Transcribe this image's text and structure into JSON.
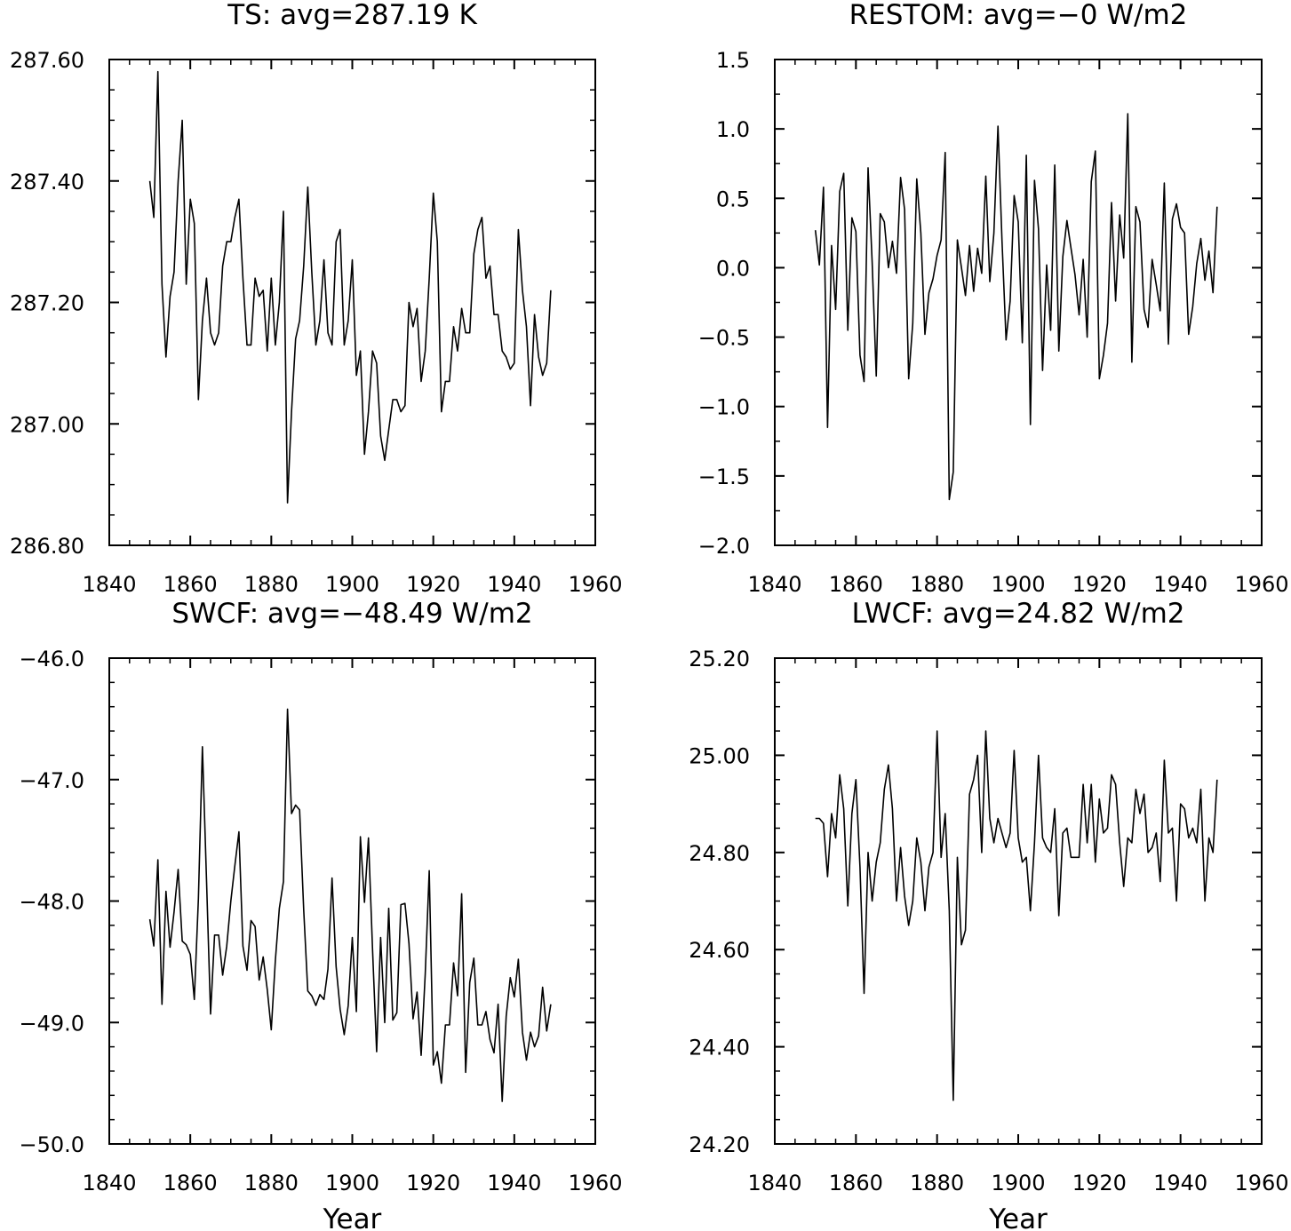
{
  "chart_data": [
    {
      "type": "line",
      "title": "TS: avg=287.19 K",
      "xlabel": "",
      "ylabel": "",
      "xlim": [
        1840,
        1960
      ],
      "ylim": [
        286.8,
        287.6
      ],
      "xticks": [
        1840,
        1860,
        1880,
        1900,
        1920,
        1940,
        1960
      ],
      "xtick_labels": [
        "1840",
        "1860",
        "1880",
        "1900",
        "1920",
        "1940",
        "1960"
      ],
      "yticks": [
        286.8,
        287.0,
        287.2,
        287.4,
        287.6
      ],
      "ytick_labels": [
        "286.80",
        "287.00",
        "287.20",
        "287.40",
        "287.60"
      ],
      "y_minor_step": 0.05,
      "grid": false,
      "x": [
        1850,
        1851,
        1852,
        1853,
        1854,
        1855,
        1856,
        1857,
        1858,
        1859,
        1860,
        1861,
        1862,
        1863,
        1864,
        1865,
        1866,
        1867,
        1868,
        1869,
        1870,
        1871,
        1872,
        1873,
        1874,
        1875,
        1876,
        1877,
        1878,
        1879,
        1880,
        1881,
        1882,
        1883,
        1884,
        1885,
        1886,
        1887,
        1888,
        1889,
        1890,
        1891,
        1892,
        1893,
        1894,
        1895,
        1896,
        1897,
        1898,
        1899,
        1900,
        1901,
        1902,
        1903,
        1904,
        1905,
        1906,
        1907,
        1908,
        1909,
        1910,
        1911,
        1912,
        1913,
        1914,
        1915,
        1916,
        1917,
        1918,
        1919,
        1920,
        1921,
        1922,
        1923,
        1924,
        1925,
        1926,
        1927,
        1928,
        1929,
        1930,
        1931,
        1932,
        1933,
        1934,
        1935,
        1936,
        1937,
        1938,
        1939,
        1940,
        1941,
        1942,
        1943,
        1944,
        1945,
        1946,
        1947,
        1948,
        1949
      ],
      "values": [
        287.4,
        287.34,
        287.58,
        287.23,
        287.11,
        287.21,
        287.25,
        287.4,
        287.5,
        287.23,
        287.37,
        287.33,
        287.04,
        287.17,
        287.24,
        287.15,
        287.13,
        287.15,
        287.26,
        287.3,
        287.3,
        287.34,
        287.37,
        287.24,
        287.13,
        287.13,
        287.24,
        287.21,
        287.22,
        287.12,
        287.24,
        287.13,
        287.2,
        287.35,
        286.87,
        287.02,
        287.14,
        287.17,
        287.26,
        287.39,
        287.25,
        287.13,
        287.17,
        287.27,
        287.15,
        287.13,
        287.3,
        287.32,
        287.13,
        287.17,
        287.27,
        287.08,
        287.12,
        286.95,
        287.02,
        287.12,
        287.1,
        286.98,
        286.94,
        286.99,
        287.04,
        287.04,
        287.02,
        287.03,
        287.2,
        287.16,
        287.19,
        287.07,
        287.12,
        287.24,
        287.38,
        287.3,
        287.02,
        287.07,
        287.07,
        287.16,
        287.12,
        287.19,
        287.15,
        287.15,
        287.28,
        287.32,
        287.34,
        287.24,
        287.26,
        287.18,
        287.18,
        287.12,
        287.11,
        287.09,
        287.1,
        287.32,
        287.22,
        287.16,
        287.03,
        287.18,
        287.11,
        287.08,
        287.1,
        287.22
      ]
    },
    {
      "type": "line",
      "title": "RESTOM: avg=−0 W/m2",
      "xlabel": "",
      "ylabel": "",
      "xlim": [
        1840,
        1960
      ],
      "ylim": [
        -2.0,
        1.5
      ],
      "xticks": [
        1840,
        1860,
        1880,
        1900,
        1920,
        1940,
        1960
      ],
      "xtick_labels": [
        "1840",
        "1860",
        "1880",
        "1900",
        "1920",
        "1940",
        "1960"
      ],
      "yticks": [
        -2.0,
        -1.5,
        -1.0,
        -0.5,
        0.0,
        0.5,
        1.0,
        1.5
      ],
      "ytick_labels": [
        "−2.0",
        "−1.5",
        "−1.0",
        "−0.5",
        "0.0",
        "0.5",
        "1.0",
        "1.5"
      ],
      "y_minor_step": 0.25,
      "grid": false,
      "x": [
        1850,
        1851,
        1852,
        1853,
        1854,
        1855,
        1856,
        1857,
        1858,
        1859,
        1860,
        1861,
        1862,
        1863,
        1864,
        1865,
        1866,
        1867,
        1868,
        1869,
        1870,
        1871,
        1872,
        1873,
        1874,
        1875,
        1876,
        1877,
        1878,
        1879,
        1880,
        1881,
        1882,
        1883,
        1884,
        1885,
        1886,
        1887,
        1888,
        1889,
        1890,
        1891,
        1892,
        1893,
        1894,
        1895,
        1896,
        1897,
        1898,
        1899,
        1900,
        1901,
        1902,
        1903,
        1904,
        1905,
        1906,
        1907,
        1908,
        1909,
        1910,
        1911,
        1912,
        1913,
        1914,
        1915,
        1916,
        1917,
        1918,
        1919,
        1920,
        1921,
        1922,
        1923,
        1924,
        1925,
        1926,
        1927,
        1928,
        1929,
        1930,
        1931,
        1932,
        1933,
        1934,
        1935,
        1936,
        1937,
        1938,
        1939,
        1940,
        1941,
        1942,
        1943,
        1944,
        1945,
        1946,
        1947,
        1948,
        1949
      ],
      "values": [
        0.27,
        0.02,
        0.58,
        -1.15,
        0.16,
        -0.3,
        0.55,
        0.68,
        -0.45,
        0.36,
        0.26,
        -0.63,
        -0.82,
        0.72,
        0.04,
        -0.78,
        0.39,
        0.33,
        0.0,
        0.19,
        -0.04,
        0.65,
        0.42,
        -0.8,
        -0.4,
        0.64,
        0.25,
        -0.48,
        -0.18,
        -0.08,
        0.09,
        0.2,
        0.83,
        -1.67,
        -1.47,
        0.2,
        0.0,
        -0.2,
        0.16,
        -0.17,
        0.14,
        -0.04,
        0.66,
        -0.1,
        0.25,
        1.02,
        0.2,
        -0.52,
        -0.24,
        0.52,
        0.33,
        -0.54,
        0.81,
        -1.13,
        0.63,
        0.28,
        -0.74,
        0.02,
        -0.45,
        0.74,
        -0.6,
        0.08,
        0.34,
        0.14,
        -0.05,
        -0.34,
        0.06,
        -0.5,
        0.62,
        0.84,
        -0.8,
        -0.63,
        -0.4,
        0.47,
        -0.24,
        0.38,
        0.07,
        1.11,
        -0.68,
        0.44,
        0.33,
        -0.3,
        -0.43,
        0.06,
        -0.12,
        -0.31,
        0.61,
        -0.55,
        0.35,
        0.46,
        0.29,
        0.25,
        -0.48,
        -0.28,
        0.03,
        0.21,
        -0.09,
        0.12,
        -0.18,
        0.44
      ]
    },
    {
      "type": "line",
      "title": "SWCF: avg=−48.49 W/m2",
      "xlabel": "Year",
      "ylabel": "",
      "xlim": [
        1840,
        1960
      ],
      "ylim": [
        -50.0,
        -46.0
      ],
      "xticks": [
        1840,
        1860,
        1880,
        1900,
        1920,
        1940,
        1960
      ],
      "xtick_labels": [
        "1840",
        "1860",
        "1880",
        "1900",
        "1920",
        "1940",
        "1960"
      ],
      "yticks": [
        -50.0,
        -49.0,
        -48.0,
        -47.0,
        -46.0
      ],
      "ytick_labels": [
        "−50.0",
        "−49.0",
        "−48.0",
        "−47.0",
        "−46.0"
      ],
      "y_minor_step": 0.2,
      "grid": false,
      "x": [
        1850,
        1851,
        1852,
        1853,
        1854,
        1855,
        1856,
        1857,
        1858,
        1859,
        1860,
        1861,
        1862,
        1863,
        1864,
        1865,
        1866,
        1867,
        1868,
        1869,
        1870,
        1871,
        1872,
        1873,
        1874,
        1875,
        1876,
        1877,
        1878,
        1879,
        1880,
        1881,
        1882,
        1883,
        1884,
        1885,
        1886,
        1887,
        1888,
        1889,
        1890,
        1891,
        1892,
        1893,
        1894,
        1895,
        1896,
        1897,
        1898,
        1899,
        1900,
        1901,
        1902,
        1903,
        1904,
        1905,
        1906,
        1907,
        1908,
        1909,
        1910,
        1911,
        1912,
        1913,
        1914,
        1915,
        1916,
        1917,
        1918,
        1919,
        1920,
        1921,
        1922,
        1923,
        1924,
        1925,
        1926,
        1927,
        1928,
        1929,
        1930,
        1931,
        1932,
        1933,
        1934,
        1935,
        1936,
        1937,
        1938,
        1939,
        1940,
        1941,
        1942,
        1943,
        1944,
        1945,
        1946,
        1947,
        1948,
        1949
      ],
      "values": [
        -48.15,
        -48.37,
        -47.66,
        -48.85,
        -47.92,
        -48.38,
        -48.09,
        -47.74,
        -48.33,
        -48.36,
        -48.44,
        -48.81,
        -47.98,
        -46.73,
        -47.82,
        -48.93,
        -48.28,
        -48.28,
        -48.61,
        -48.37,
        -48.0,
        -47.71,
        -47.43,
        -48.37,
        -48.57,
        -48.16,
        -48.21,
        -48.65,
        -48.46,
        -48.73,
        -49.06,
        -48.49,
        -48.06,
        -47.84,
        -46.42,
        -47.28,
        -47.21,
        -47.25,
        -48.07,
        -48.74,
        -48.78,
        -48.86,
        -48.77,
        -48.81,
        -48.56,
        -47.81,
        -48.54,
        -48.89,
        -49.1,
        -48.86,
        -48.3,
        -48.91,
        -47.47,
        -48.01,
        -47.48,
        -48.4,
        -49.24,
        -48.3,
        -49.0,
        -48.06,
        -48.98,
        -48.92,
        -48.03,
        -48.02,
        -48.35,
        -48.97,
        -48.75,
        -49.27,
        -48.6,
        -47.75,
        -49.35,
        -49.24,
        -49.5,
        -49.02,
        -49.02,
        -48.51,
        -48.78,
        -47.94,
        -49.41,
        -48.67,
        -48.47,
        -49.02,
        -49.02,
        -48.91,
        -49.14,
        -49.25,
        -48.85,
        -49.65,
        -48.95,
        -48.63,
        -48.79,
        -48.48,
        -49.08,
        -49.31,
        -49.08,
        -49.2,
        -49.11,
        -48.71,
        -49.07,
        -48.85
      ]
    },
    {
      "type": "line",
      "title": "LWCF: avg=24.82 W/m2",
      "xlabel": "Year",
      "ylabel": "",
      "xlim": [
        1840,
        1960
      ],
      "ylim": [
        24.2,
        25.2
      ],
      "xticks": [
        1840,
        1860,
        1880,
        1900,
        1920,
        1940,
        1960
      ],
      "xtick_labels": [
        "1840",
        "1860",
        "1880",
        "1900",
        "1920",
        "1940",
        "1960"
      ],
      "yticks": [
        24.2,
        24.4,
        24.6,
        24.8,
        25.0,
        25.2
      ],
      "ytick_labels": [
        "24.20",
        "24.40",
        "24.60",
        "24.80",
        "25.00",
        "25.20"
      ],
      "y_minor_step": 0.05,
      "grid": false,
      "x": [
        1850,
        1851,
        1852,
        1853,
        1854,
        1855,
        1856,
        1857,
        1858,
        1859,
        1860,
        1861,
        1862,
        1863,
        1864,
        1865,
        1866,
        1867,
        1868,
        1869,
        1870,
        1871,
        1872,
        1873,
        1874,
        1875,
        1876,
        1877,
        1878,
        1879,
        1880,
        1881,
        1882,
        1883,
        1884,
        1885,
        1886,
        1887,
        1888,
        1889,
        1890,
        1891,
        1892,
        1893,
        1894,
        1895,
        1896,
        1897,
        1898,
        1899,
        1900,
        1901,
        1902,
        1903,
        1904,
        1905,
        1906,
        1907,
        1908,
        1909,
        1910,
        1911,
        1912,
        1913,
        1914,
        1915,
        1916,
        1917,
        1918,
        1919,
        1920,
        1921,
        1922,
        1923,
        1924,
        1925,
        1926,
        1927,
        1928,
        1929,
        1930,
        1931,
        1932,
        1933,
        1934,
        1935,
        1936,
        1937,
        1938,
        1939,
        1940,
        1941,
        1942,
        1943,
        1944,
        1945,
        1946,
        1947,
        1948,
        1949
      ],
      "values": [
        24.87,
        24.87,
        24.86,
        24.75,
        24.88,
        24.83,
        24.96,
        24.89,
        24.69,
        24.88,
        24.95,
        24.77,
        24.51,
        24.8,
        24.7,
        24.78,
        24.82,
        24.93,
        24.98,
        24.89,
        24.7,
        24.81,
        24.71,
        24.65,
        24.7,
        24.83,
        24.78,
        24.68,
        24.77,
        24.8,
        25.05,
        24.79,
        24.88,
        24.68,
        24.29,
        24.79,
        24.61,
        24.64,
        24.92,
        24.95,
        25.0,
        24.8,
        25.05,
        24.87,
        24.82,
        24.87,
        24.84,
        24.81,
        24.84,
        25.01,
        24.83,
        24.78,
        24.79,
        24.68,
        24.82,
        25.0,
        24.83,
        24.81,
        24.8,
        24.89,
        24.67,
        24.84,
        24.85,
        24.79,
        24.79,
        24.79,
        24.94,
        24.82,
        24.94,
        24.78,
        24.91,
        24.84,
        24.85,
        24.96,
        24.94,
        24.82,
        24.73,
        24.83,
        24.82,
        24.93,
        24.88,
        24.92,
        24.8,
        24.81,
        24.84,
        24.74,
        24.99,
        24.84,
        24.85,
        24.7,
        24.9,
        24.89,
        24.83,
        24.85,
        24.82,
        24.93,
        24.7,
        24.83,
        24.8,
        24.95
      ]
    }
  ]
}
